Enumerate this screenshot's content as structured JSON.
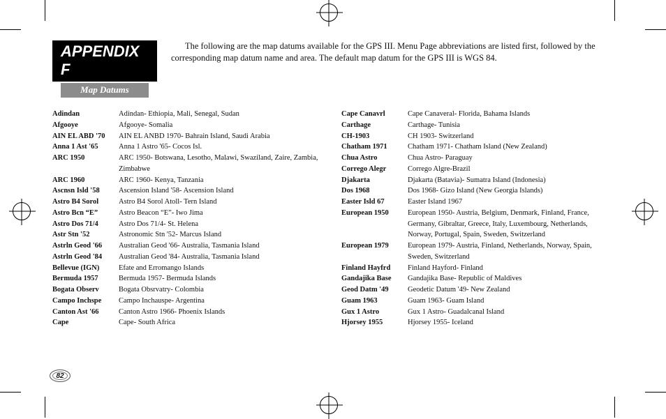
{
  "appendix_label": "APPENDIX F",
  "subtitle": "Map Datums",
  "intro": "The following are the map datums available for the GPS III. Menu Page abbreviations are listed first, followed by the corresponding map datum name and area. The default map datum for the GPS III is WGS 84.",
  "page_number": "82",
  "left_col": [
    {
      "abbr": "Adindan",
      "desc": "Adindan- Ethiopia, Mali, Senegal, Sudan"
    },
    {
      "abbr": "Afgooye",
      "desc": "Afgooye- Somalia"
    },
    {
      "abbr": "AIN EL ABD '70",
      "desc": "AIN EL ANBD 1970- Bahrain Island, Saudi Arabia"
    },
    {
      "abbr": "Anna 1 Ast '65",
      "desc": "Anna 1 Astro '65- Cocos Isl."
    },
    {
      "abbr": "ARC 1950",
      "desc": "ARC 1950- Botswana, Lesotho, Malawi, Swaziland, Zaire, Zambia, Zimbabwe"
    },
    {
      "abbr": "ARC 1960",
      "desc": "ARC 1960- Kenya, Tanzania"
    },
    {
      "abbr": "Ascnsn Isld '58",
      "desc": "Ascension Island '58- Ascension Island"
    },
    {
      "abbr": "Astro B4 Sorol",
      "desc": "Astro B4 Sorol Atoll- Tern Island"
    },
    {
      "abbr": "Astro Bcn “E”",
      "desc": "Astro Beacon “E”- Iwo Jima"
    },
    {
      "abbr": "Astro Dos 71/4",
      "desc": "Astro Dos 71/4- St. Helena"
    },
    {
      "abbr": "Astr Stn '52",
      "desc": "Astronomic Stn '52- Marcus Island"
    },
    {
      "abbr": "Astrln Geod '66",
      "desc": "Australian Geod '66- Australia, Tasmania Island"
    },
    {
      "abbr": "Astrln Geod '84",
      "desc": "Australian Geod '84- Australia, Tasmania Island"
    },
    {
      "abbr": "Bellevue (IGN)",
      "desc": "Efate and Erromango Islands"
    },
    {
      "abbr": "Bermuda 1957",
      "desc": "Bermuda 1957- Bermuda Islands"
    },
    {
      "abbr": "Bogata Observ",
      "desc": "Bogata Obsrvatry- Colombia"
    },
    {
      "abbr": "Campo Inchspe",
      "desc": "Campo Inchauspe- Argentina"
    },
    {
      "abbr": "Canton Ast '66",
      "desc": "Canton Astro 1966- Phoenix Islands"
    },
    {
      "abbr": "Cape",
      "desc": "Cape- South Africa"
    }
  ],
  "right_col": [
    {
      "abbr": "Cape Canavrl",
      "desc": "Cape Canaveral- Florida, Bahama Islands"
    },
    {
      "abbr": "Carthage",
      "desc": "Carthage- Tunisia"
    },
    {
      "abbr": "CH-1903",
      "desc": "CH 1903- Switzerland"
    },
    {
      "abbr": "Chatham 1971",
      "desc": "Chatham 1971- Chatham Island (New Zealand)"
    },
    {
      "abbr": "Chua Astro",
      "desc": "Chua Astro- Paraguay"
    },
    {
      "abbr": "Corrego Alegr",
      "desc": "Corrego Algre-Brazil"
    },
    {
      "abbr": "Djakarta",
      "desc": "Djakarta (Batavia)- Sumatra Island (Indonesia)"
    },
    {
      "abbr": "Dos 1968",
      "desc": "Dos 1968- Gizo Island (New Georgia Islands)"
    },
    {
      "abbr": "Easter Isld 67",
      "desc": "Easter Island 1967"
    },
    {
      "abbr": "European 1950",
      "desc": "European 1950- Austria, Belgium, Denmark, Finland, France, Germany, Gibraltar, Greece, Italy, Luxembourg, Netherlands, Norway, Portugal, Spain, Sweden, Switzerland"
    },
    {
      "abbr": "European 1979",
      "desc": "European 1979- Austria, Finland, Netherlands, Norway, Spain, Sweden, Switzerland"
    },
    {
      "abbr": "Finland Hayfrd",
      "desc": "Finland Hayford- Finland"
    },
    {
      "abbr": "Gandajika Base",
      "desc": "Gandajika Base- Republic of Maldives"
    },
    {
      "abbr": "Geod Datm '49",
      "desc": "Geodetic Datum '49- New Zealand"
    },
    {
      "abbr": "Guam 1963",
      "desc": "Guam 1963- Guam Island"
    },
    {
      "abbr": "Gux 1 Astro",
      "desc": "Gux 1 Astro- Guadalcanal Island"
    },
    {
      "abbr": "Hjorsey 1955",
      "desc": "Hjorsey 1955- Iceland"
    }
  ]
}
